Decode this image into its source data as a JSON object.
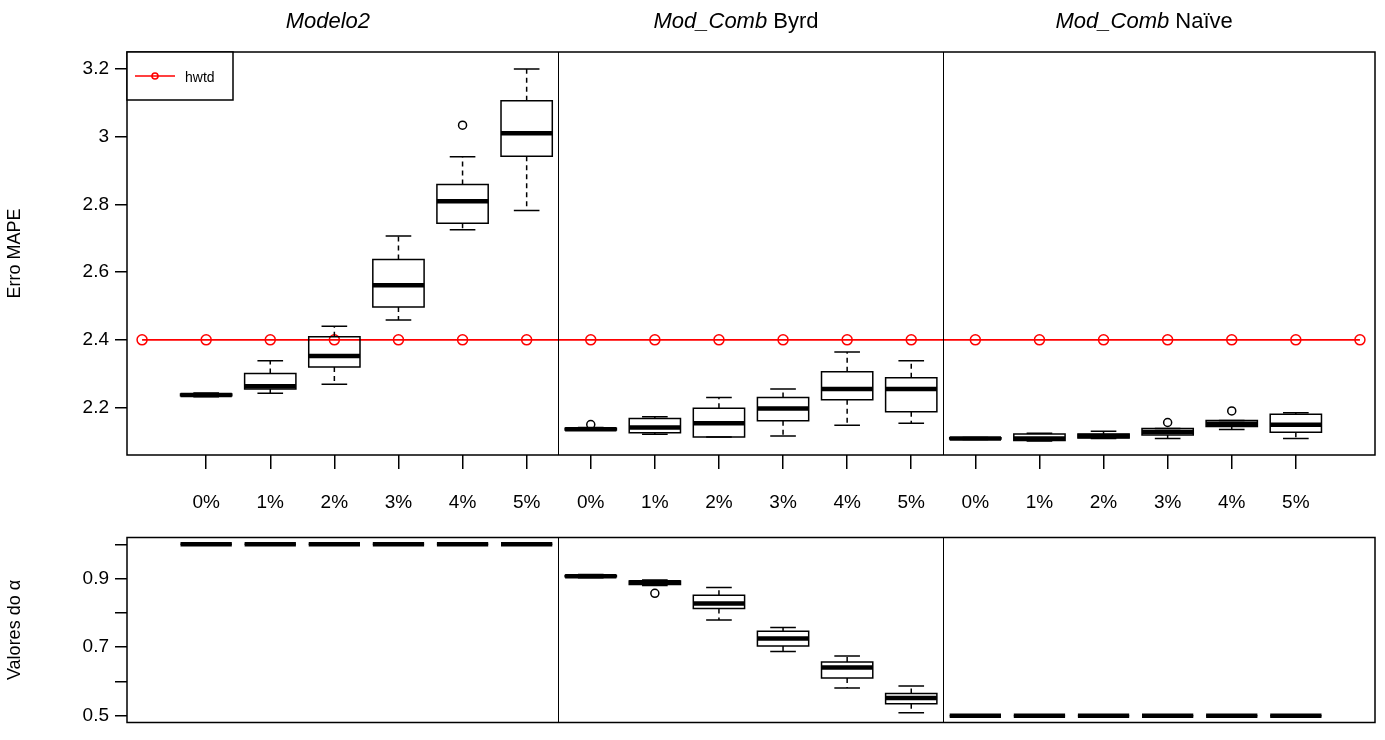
{
  "chart_data": [
    {
      "type": "box",
      "categories": [
        null,
        "0%",
        "1%",
        "2%",
        "3%",
        "4%",
        "5%",
        "0%",
        "1%",
        "2%",
        "3%",
        "4%",
        "5%",
        "0%",
        "1%",
        "2%",
        "3%",
        "4%",
        "5%",
        null
      ],
      "ylabel": "Erro MAPE",
      "ylim": [
        2.06,
        3.25
      ],
      "yticks": [
        2.2,
        2.4,
        2.6,
        2.8,
        3.0,
        3.2
      ],
      "legend": "top left",
      "annotations": [
        "Modelo2",
        "Mod_Comb Byrd",
        "Mod_Comb Naïve"
      ],
      "series": [
        {
          "type": "box",
          "color": "#000000",
          "boxes": [
            null,
            {
              "low": 2.232,
              "q1": 2.235,
              "median": 2.237,
              "q3": 2.24,
              "high": 2.243
            },
            {
              "low": 2.242,
              "q1": 2.255,
              "median": 2.263,
              "q3": 2.301,
              "high": 2.338
            },
            {
              "low": 2.269,
              "q1": 2.32,
              "median": 2.352,
              "q3": 2.409,
              "high": 2.44
            },
            {
              "low": 2.459,
              "q1": 2.497,
              "median": 2.561,
              "q3": 2.637,
              "high": 2.707
            },
            {
              "low": 2.725,
              "q1": 2.744,
              "median": 2.809,
              "q3": 2.859,
              "high": 2.941,
              "outliers": [
                3.034
              ]
            },
            {
              "low": 2.782,
              "q1": 2.942,
              "median": 3.01,
              "q3": 3.106,
              "high": 3.2
            },
            {
              "low": 2.133,
              "q1": 2.134,
              "median": 2.136,
              "q3": 2.139,
              "high": 2.141,
              "outliers": [
                2.15
              ]
            },
            {
              "low": 2.121,
              "q1": 2.126,
              "median": 2.141,
              "q3": 2.168,
              "high": 2.173
            },
            {
              "low": 2.113,
              "q1": 2.113,
              "median": 2.154,
              "q3": 2.198,
              "high": 2.23
            },
            {
              "low": 2.116,
              "q1": 2.161,
              "median": 2.197,
              "q3": 2.23,
              "high": 2.255
            },
            {
              "low": 2.148,
              "q1": 2.223,
              "median": 2.255,
              "q3": 2.306,
              "high": 2.364
            },
            {
              "low": 2.154,
              "q1": 2.188,
              "median": 2.255,
              "q3": 2.288,
              "high": 2.338
            },
            {
              "low": 2.106,
              "q1": 2.107,
              "median": 2.109,
              "q3": 2.111,
              "high": 2.112
            },
            {
              "low": 2.101,
              "q1": 2.103,
              "median": 2.109,
              "q3": 2.122,
              "high": 2.124
            },
            {
              "low": 2.109,
              "q1": 2.11,
              "median": 2.116,
              "q3": 2.122,
              "high": 2.13
            },
            {
              "low": 2.109,
              "q1": 2.119,
              "median": 2.128,
              "q3": 2.138,
              "high": 2.138,
              "outliers": [
                2.156
              ]
            },
            {
              "low": 2.135,
              "q1": 2.144,
              "median": 2.152,
              "q3": 2.162,
              "high": 2.162,
              "outliers": [
                2.19
              ]
            },
            {
              "low": 2.109,
              "q1": 2.127,
              "median": 2.149,
              "q3": 2.18,
              "high": 2.185
            },
            null
          ]
        },
        {
          "type": "line",
          "name": "hwtd",
          "color": "#ff0000",
          "marker": "circle",
          "values": [
            2.4,
            2.4,
            2.4,
            2.4,
            2.4,
            2.4,
            2.4,
            2.4,
            2.4,
            2.4,
            2.4,
            2.4,
            2.4,
            2.4,
            2.4,
            2.4,
            2.4,
            2.4,
            2.4,
            2.4
          ]
        }
      ]
    },
    {
      "type": "box",
      "categories": [
        null,
        null,
        null,
        null,
        null,
        null,
        null,
        null,
        null,
        null,
        null,
        null,
        null,
        null,
        null,
        null,
        null,
        null,
        null,
        null
      ],
      "tick_labels": "y",
      "ylabel": "Valores do α",
      "ylim": [
        0.48,
        1.02
      ],
      "yticks": [
        0.5,
        {
          "value": 0.6,
          "label": null
        },
        0.7,
        {
          "value": 0.8,
          "label": null
        },
        0.9,
        {
          "value": 1.0,
          "label": null
        }
      ],
      "series": [
        {
          "type": "box",
          "color": "#000000",
          "boxes": [
            null,
            {
              "low": 1,
              "q1": 1,
              "median": 1,
              "q3": 1,
              "high": 1
            },
            {
              "low": 1,
              "q1": 1,
              "median": 1,
              "q3": 1,
              "high": 1
            },
            {
              "low": 1,
              "q1": 1,
              "median": 1,
              "q3": 1,
              "high": 1
            },
            {
              "low": 1,
              "q1": 1,
              "median": 1,
              "q3": 1,
              "high": 1
            },
            {
              "low": 1,
              "q1": 1,
              "median": 1,
              "q3": 1,
              "high": 1
            },
            {
              "low": 1,
              "q1": 1,
              "median": 1,
              "q3": 1,
              "high": 1
            },
            {
              "low": 0.902,
              "q1": 0.905,
              "median": 0.907,
              "q3": 0.909,
              "high": 0.912
            },
            {
              "low": 0.88,
              "q1": 0.883,
              "median": 0.889,
              "q3": 0.893,
              "high": 0.896,
              "outliers": [
                0.857
              ]
            },
            {
              "low": 0.779,
              "q1": 0.813,
              "median": 0.827,
              "q3": 0.851,
              "high": 0.874
            },
            {
              "low": 0.687,
              "q1": 0.703,
              "median": 0.725,
              "q3": 0.746,
              "high": 0.757
            },
            {
              "low": 0.581,
              "q1": 0.61,
              "median": 0.641,
              "q3": 0.657,
              "high": 0.674
            },
            {
              "low": 0.509,
              "q1": 0.535,
              "median": 0.552,
              "q3": 0.565,
              "high": 0.587
            },
            {
              "low": 0.5,
              "q1": 0.5,
              "median": 0.5,
              "q3": 0.5,
              "high": 0.5
            },
            {
              "low": 0.5,
              "q1": 0.5,
              "median": 0.5,
              "q3": 0.5,
              "high": 0.5
            },
            {
              "low": 0.5,
              "q1": 0.5,
              "median": 0.5,
              "q3": 0.5,
              "high": 0.5
            },
            {
              "low": 0.5,
              "q1": 0.5,
              "median": 0.5,
              "q3": 0.5,
              "high": 0.5
            },
            {
              "low": 0.5,
              "q1": 0.5,
              "median": 0.5,
              "q3": 0.5,
              "high": 0.5
            },
            {
              "low": 0.5,
              "q1": 0.5,
              "median": 0.5,
              "q3": 0.5,
              "high": 0.5
            },
            null
          ]
        }
      ]
    }
  ]
}
